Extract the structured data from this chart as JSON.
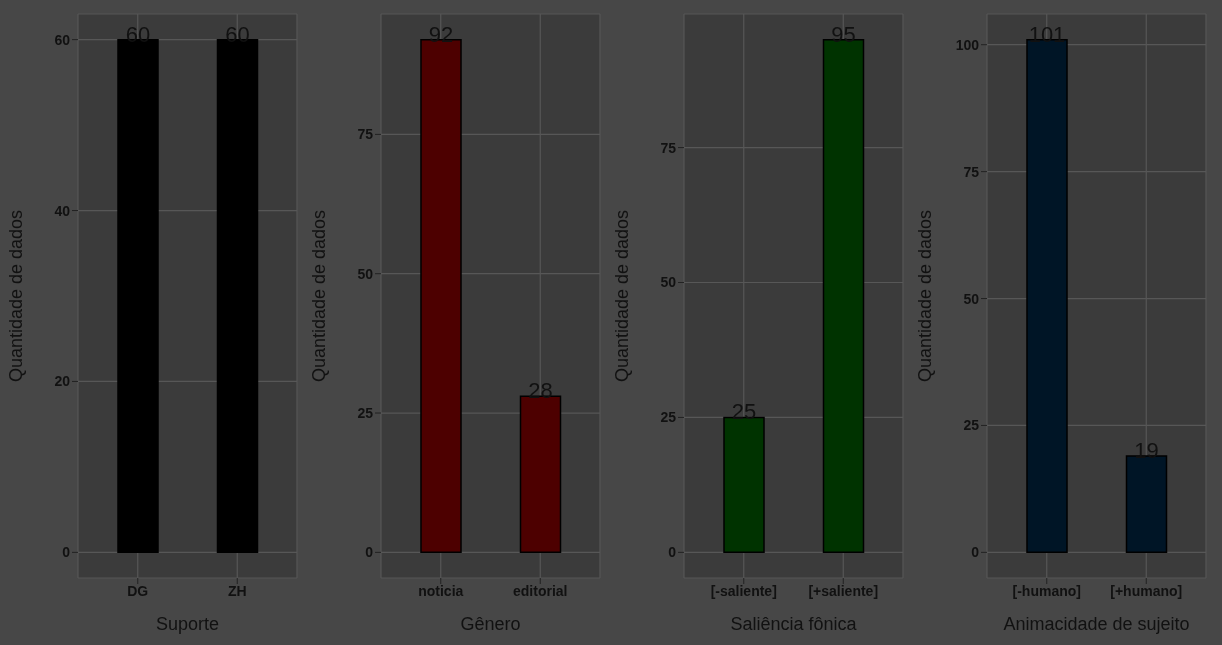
{
  "chart_data": [
    {
      "type": "bar",
      "xlabel": "Suporte",
      "ylabel": "Quantidade de dados",
      "categories": [
        "DG",
        "ZH"
      ],
      "values": [
        60,
        60
      ],
      "color": "#000000",
      "ylim": [
        -3,
        63
      ],
      "yticks": [
        0,
        20,
        40,
        60
      ],
      "grid": true,
      "data_labels": true
    },
    {
      "type": "bar",
      "xlabel": "Gênero",
      "ylabel": "Quantidade de dados",
      "categories": [
        "noticia",
        "editorial"
      ],
      "values": [
        92,
        28
      ],
      "color": "#4d0000",
      "ylim": [
        -4.6,
        96.6
      ],
      "yticks": [
        0,
        25,
        50,
        75
      ],
      "grid": true,
      "data_labels": true
    },
    {
      "type": "bar",
      "xlabel": "Saliência fônica",
      "ylabel": "Quantidade de dados",
      "categories": [
        "[-saliente]",
        "[+saliente]"
      ],
      "values": [
        25,
        95
      ],
      "color": "#003300",
      "ylim": [
        -4.75,
        99.75
      ],
      "yticks": [
        0,
        25,
        50,
        75
      ],
      "grid": true,
      "data_labels": true
    },
    {
      "type": "bar",
      "xlabel": "Animacidade de sujeito",
      "ylabel": "Quantidade de dados",
      "categories": [
        "[-humano]",
        "[+humano]"
      ],
      "values": [
        101,
        19
      ],
      "color": "#001526",
      "ylim": [
        -5.05,
        106.05
      ],
      "yticks": [
        0,
        25,
        50,
        75,
        100
      ],
      "grid": true,
      "data_labels": true
    }
  ]
}
